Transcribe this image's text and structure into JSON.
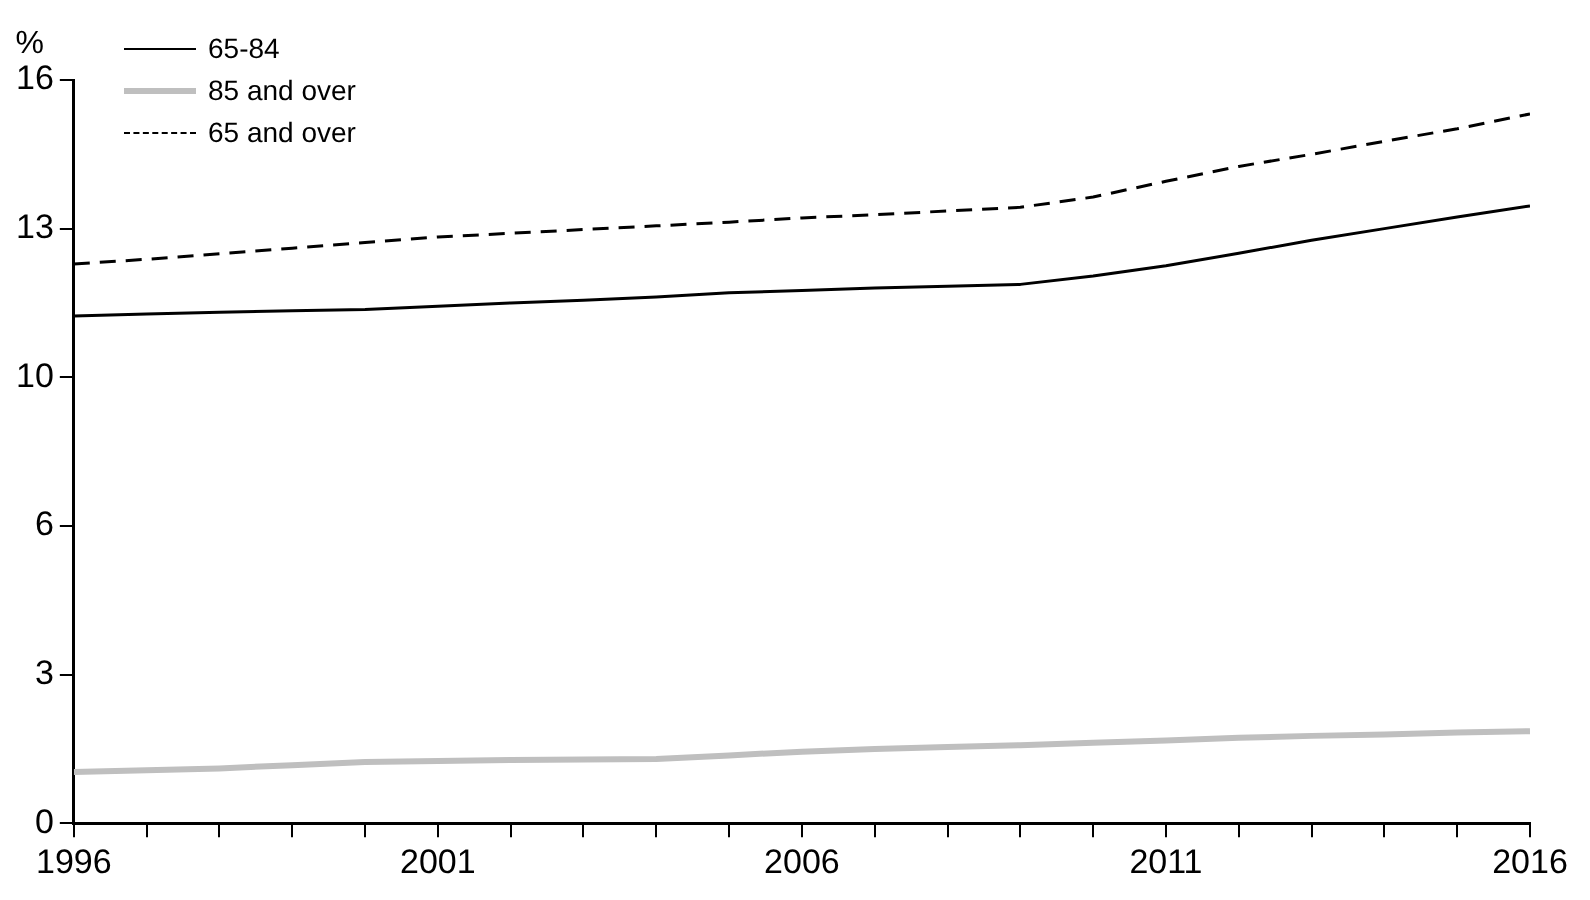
{
  "chart_data": {
    "type": "line",
    "ylabel": "%",
    "x": [
      1996,
      1997,
      1998,
      1999,
      2000,
      2001,
      2002,
      2003,
      2004,
      2005,
      2006,
      2007,
      2008,
      2009,
      2010,
      2011,
      2012,
      2013,
      2014,
      2015,
      2016
    ],
    "series": [
      {
        "name": "65-84",
        "color": "#000000",
        "line_style": "solid",
        "values": [
          10.92,
          10.96,
          11.0,
          11.03,
          11.06,
          11.13,
          11.2,
          11.26,
          11.33,
          11.42,
          11.47,
          11.52,
          11.56,
          11.6,
          11.78,
          12.0,
          12.27,
          12.55,
          12.8,
          13.05,
          13.29
        ]
      },
      {
        "name": "85 and over",
        "color": "#bfbfbf",
        "line_style": "solid",
        "values": [
          1.1,
          1.14,
          1.18,
          1.25,
          1.32,
          1.34,
          1.36,
          1.37,
          1.38,
          1.46,
          1.54,
          1.6,
          1.64,
          1.68,
          1.73,
          1.78,
          1.84,
          1.88,
          1.91,
          1.95,
          1.98
        ]
      },
      {
        "name": "65 and over",
        "color": "#000000",
        "line_style": "dashed",
        "values": [
          12.04,
          12.14,
          12.26,
          12.38,
          12.5,
          12.62,
          12.7,
          12.78,
          12.86,
          12.94,
          13.03,
          13.1,
          13.18,
          13.26,
          13.48,
          13.82,
          14.14,
          14.4,
          14.68,
          14.95,
          15.27
        ]
      }
    ],
    "xlim": [
      1996,
      2016
    ],
    "xticks": [
      1996,
      {
        "value": 1997,
        "label": null
      },
      {
        "value": 1998,
        "label": null
      },
      {
        "value": 1999,
        "label": null
      },
      {
        "value": 2000,
        "label": null
      },
      2001,
      {
        "value": 2002,
        "label": null
      },
      {
        "value": 2003,
        "label": null
      },
      {
        "value": 2004,
        "label": null
      },
      {
        "value": 2005,
        "label": null
      },
      2006,
      {
        "value": 2007,
        "label": null
      },
      {
        "value": 2008,
        "label": null
      },
      {
        "value": 2009,
        "label": null
      },
      {
        "value": 2010,
        "label": null
      },
      2011,
      {
        "value": 2012,
        "label": null
      },
      {
        "value": 2013,
        "label": null
      },
      {
        "value": 2014,
        "label": null
      },
      {
        "value": 2015,
        "label": null
      },
      2016
    ],
    "ylim": [
      0,
      16
    ],
    "yticks": [
      0,
      {
        "value": 3.2,
        "label": "3"
      },
      {
        "value": 6.4,
        "label": "6"
      },
      {
        "value": 9.6,
        "label": "10"
      },
      {
        "value": 12.8,
        "label": "13"
      },
      16
    ],
    "grid": false,
    "legend": "top left",
    "marker": "none"
  }
}
